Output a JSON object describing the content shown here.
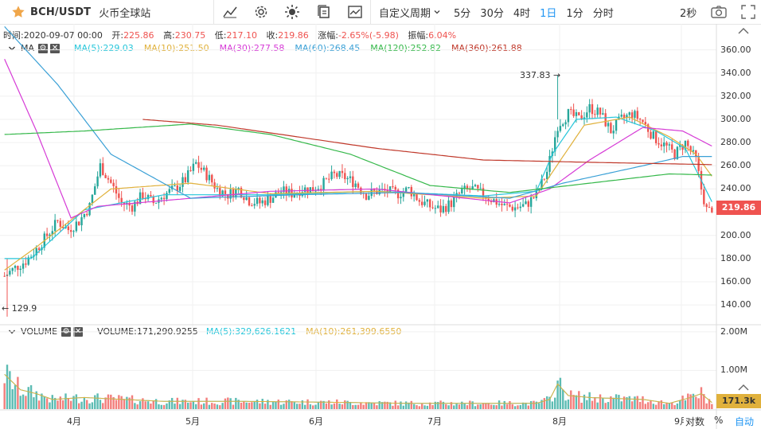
{
  "toolbar": {
    "symbol": "BCH/USDT",
    "exchange": "火币全球站",
    "custom_period": "自定义周期",
    "periods": [
      "5分",
      "30分",
      "4时",
      "1日",
      "1分",
      "分时"
    ],
    "active_period": "1日",
    "refresh": "2秒"
  },
  "info": {
    "time": "时间:2020-09-07 00:00",
    "open_label": "开:",
    "open": "225.86",
    "high_label": "高:",
    "high": "230.75",
    "low_label": "低:",
    "low": "217.10",
    "close_label": "收:",
    "close": "219.86",
    "change_label": "涨幅:",
    "change": "-2.65%(-5.98)",
    "amplitude_label": "振幅:",
    "amplitude": "6.04%"
  },
  "ma_legend": {
    "name": "MA",
    "items": [
      {
        "text": "MA(5):229.03",
        "color": "#26c6da"
      },
      {
        "text": "MA(10):251.50",
        "color": "#e0b13c"
      },
      {
        "text": "MA(30):277.58",
        "color": "#d63bd6"
      },
      {
        "text": "MA(60):268.45",
        "color": "#3aa0d6"
      },
      {
        "text": "MA(120):252.82",
        "color": "#35b84a"
      },
      {
        "text": "MA(360):261.88",
        "color": "#c0392b"
      }
    ]
  },
  "vol_legend": {
    "name": "VOLUME",
    "items": [
      {
        "text": "VOLUME:171,290.9255",
        "color": "#333333"
      },
      {
        "text": "MA(5):329,626.1621",
        "color": "#26c6da"
      },
      {
        "text": "MA(10):261,399.6550",
        "color": "#e0b13c"
      }
    ]
  },
  "price_axis": [
    "360.00",
    "340.00",
    "320.00",
    "300.00",
    "280.00",
    "260.00",
    "240.00",
    "220.00",
    "200.00",
    "180.00",
    "160.00",
    "140.00"
  ],
  "volume_axis": [
    "2.00M",
    "1.00M"
  ],
  "current_price": "219.86",
  "current_volume": "171.3k",
  "high_annotation": "337.83",
  "low_annotation": "129.9",
  "months": [
    "4月",
    "5月",
    "6月",
    "7月",
    "8月",
    "9月"
  ],
  "bottom": {
    "log_label": "对数",
    "percent_label": "%",
    "auto_label": "自动"
  },
  "colors": {
    "up": "#26a69a",
    "down": "#ef5350",
    "accent": "#2196f3",
    "price_tag": "#ef5350",
    "volume_tag": "#e0b13c"
  },
  "chart_data": {
    "type": "candlestick",
    "title": "BCH/USDT 1日",
    "ylim": [
      125,
      370
    ],
    "volume_ylim": [
      0,
      2100000
    ],
    "series": [
      {
        "name": "MA(5)",
        "value": 229.03
      },
      {
        "name": "MA(10)",
        "value": 251.5
      },
      {
        "name": "MA(30)",
        "value": 277.58
      },
      {
        "name": "MA(60)",
        "value": 268.45
      },
      {
        "name": "MA(120)",
        "value": 252.82
      },
      {
        "name": "MA(360)",
        "value": 261.88
      }
    ],
    "price_anchors": [
      [
        0,
        165
      ],
      [
        4,
        172
      ],
      [
        8,
        178
      ],
      [
        12,
        188
      ],
      [
        16,
        200
      ],
      [
        20,
        212
      ],
      [
        24,
        205
      ],
      [
        28,
        212
      ],
      [
        32,
        225
      ],
      [
        36,
        260
      ],
      [
        40,
        245
      ],
      [
        44,
        228
      ],
      [
        48,
        225
      ],
      [
        52,
        235
      ],
      [
        56,
        228
      ],
      [
        60,
        235
      ],
      [
        64,
        240
      ],
      [
        68,
        248
      ],
      [
        72,
        262
      ],
      [
        76,
        252
      ],
      [
        80,
        240
      ],
      [
        84,
        235
      ],
      [
        88,
        240
      ],
      [
        92,
        230
      ],
      [
        96,
        228
      ],
      [
        100,
        232
      ],
      [
        104,
        238
      ],
      [
        108,
        236
      ],
      [
        112,
        240
      ],
      [
        116,
        240
      ],
      [
        120,
        245
      ],
      [
        124,
        252
      ],
      [
        128,
        250
      ],
      [
        132,
        245
      ],
      [
        136,
        235
      ],
      [
        140,
        238
      ],
      [
        144,
        238
      ],
      [
        148,
        236
      ],
      [
        152,
        240
      ],
      [
        156,
        230
      ],
      [
        160,
        225
      ],
      [
        164,
        222
      ],
      [
        168,
        228
      ],
      [
        172,
        238
      ],
      [
        176,
        240
      ],
      [
        180,
        235
      ],
      [
        184,
        230
      ],
      [
        188,
        225
      ],
      [
        192,
        224
      ],
      [
        196,
        226
      ],
      [
        200,
        235
      ],
      [
        204,
        255
      ],
      [
        208,
        295
      ],
      [
        212,
        305
      ],
      [
        216,
        300
      ],
      [
        220,
        310
      ],
      [
        224,
        305
      ],
      [
        228,
        290
      ],
      [
        232,
        300
      ],
      [
        236,
        305
      ],
      [
        240,
        298
      ],
      [
        244,
        285
      ],
      [
        248,
        278
      ],
      [
        252,
        270
      ],
      [
        256,
        280
      ],
      [
        260,
        265
      ],
      [
        262,
        240
      ],
      [
        264,
        222
      ],
      [
        266,
        220
      ]
    ],
    "ma_anchors": {
      "MA(5)": [
        [
          0,
          180
        ],
        [
          10,
          180
        ],
        [
          30,
          222
        ],
        [
          60,
          235
        ],
        [
          100,
          235
        ],
        [
          140,
          238
        ],
        [
          180,
          234
        ],
        [
          200,
          238
        ],
        [
          206,
          270
        ],
        [
          215,
          300
        ],
        [
          230,
          302
        ],
        [
          245,
          290
        ],
        [
          256,
          275
        ],
        [
          266,
          229
        ]
      ],
      "MA(10)": [
        [
          0,
          170
        ],
        [
          12,
          190
        ],
        [
          40,
          240
        ],
        [
          70,
          245
        ],
        [
          100,
          236
        ],
        [
          140,
          238
        ],
        [
          180,
          232
        ],
        [
          200,
          234
        ],
        [
          210,
          268
        ],
        [
          218,
          295
        ],
        [
          235,
          302
        ],
        [
          250,
          285
        ],
        [
          260,
          270
        ],
        [
          266,
          251
        ]
      ],
      "MA(30)": [
        [
          0,
          352
        ],
        [
          12,
          290
        ],
        [
          25,
          215
        ],
        [
          35,
          225
        ],
        [
          60,
          230
        ],
        [
          100,
          238
        ],
        [
          140,
          240
        ],
        [
          190,
          228
        ],
        [
          205,
          240
        ],
        [
          220,
          265
        ],
        [
          240,
          293
        ],
        [
          255,
          290
        ],
        [
          266,
          277
        ]
      ],
      "MA(60)": [
        [
          0,
          380
        ],
        [
          20,
          330
        ],
        [
          40,
          270
        ],
        [
          70,
          232
        ],
        [
          110,
          235
        ],
        [
          150,
          237
        ],
        [
          190,
          232
        ],
        [
          210,
          245
        ],
        [
          240,
          260
        ],
        [
          255,
          268
        ],
        [
          266,
          268
        ]
      ],
      "MA(120)": [
        [
          0,
          287
        ],
        [
          30,
          290
        ],
        [
          70,
          296
        ],
        [
          100,
          287
        ],
        [
          130,
          270
        ],
        [
          160,
          243
        ],
        [
          190,
          237
        ],
        [
          220,
          245
        ],
        [
          250,
          253
        ],
        [
          266,
          252
        ]
      ],
      "MA(360)": [
        [
          52,
          300
        ],
        [
          80,
          295
        ],
        [
          110,
          285
        ],
        [
          140,
          275
        ],
        [
          180,
          265
        ],
        [
          220,
          263
        ],
        [
          266,
          261
        ]
      ]
    },
    "volume_anchors": [
      [
        0,
        900000
      ],
      [
        6,
        500000
      ],
      [
        12,
        400000
      ],
      [
        18,
        250000
      ],
      [
        30,
        300000
      ],
      [
        60,
        200000
      ],
      [
        90,
        200000
      ],
      [
        120,
        180000
      ],
      [
        150,
        150000
      ],
      [
        200,
        150000
      ],
      [
        205,
        250000
      ],
      [
        208,
        650000
      ],
      [
        212,
        350000
      ],
      [
        220,
        300000
      ],
      [
        240,
        250000
      ],
      [
        250,
        150000
      ],
      [
        258,
        300000
      ],
      [
        262,
        400000
      ],
      [
        266,
        171000
      ]
    ]
  }
}
